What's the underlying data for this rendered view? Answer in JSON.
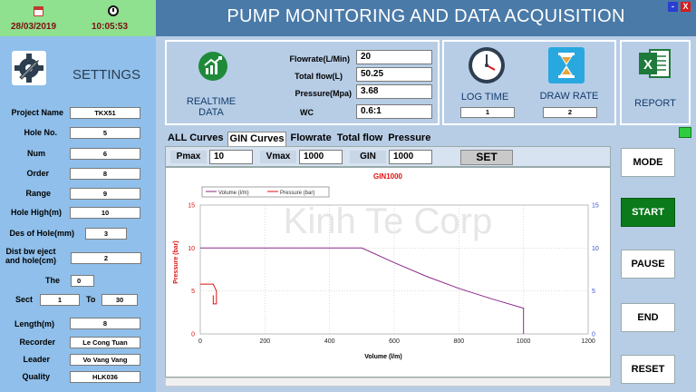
{
  "header": {
    "date": "28/03/2019",
    "time": "10:05:53",
    "title": "PUMP MONITORING AND DATA ACQUISITION",
    "min_label": "-",
    "close_label": "X"
  },
  "settings": {
    "title": "SETTINGS",
    "project_name": {
      "label": "Project Name",
      "value": "TKX51"
    },
    "hole_no": {
      "label": "Hole No.",
      "value": "5"
    },
    "num": {
      "label": "Num",
      "value": "6"
    },
    "order": {
      "label": "Order",
      "value": "8"
    },
    "range": {
      "label": "Range",
      "value": "9"
    },
    "hole_high": {
      "label": "Hole High(m)",
      "value": "10"
    },
    "des_of_hole": {
      "label": "Des of Hole(mm)",
      "value": "3"
    },
    "dist_eject_line1": "Dist bw eject",
    "dist_eject_line2": "and hole(cm)",
    "dist_eject_value": "2",
    "the": {
      "label": "The",
      "value": "0"
    },
    "sect": {
      "label": "Sect",
      "from": "1",
      "to_label": "To",
      "to": "30"
    },
    "length": {
      "label": "Length(m)",
      "value": "8"
    },
    "recorder": {
      "label": "Recorder",
      "value": "Le Cong Tuan"
    },
    "leader": {
      "label": "Leader",
      "value": "Vo Vang Vang"
    },
    "quality": {
      "label": "Quality",
      "value": "HLK036"
    }
  },
  "realtime": {
    "label_line1": "REALTIME",
    "label_line2": "DATA",
    "flowrate": {
      "label": "Flowrate(L/Min)",
      "value": "20"
    },
    "total_flow": {
      "label": "Total flow(L)",
      "value": "50.25"
    },
    "pressure": {
      "label": "Pressure(Mpa)",
      "value": "3.68"
    },
    "wc": {
      "label": "WC",
      "value": "0.6:1"
    }
  },
  "log_time": {
    "label": "LOG TIME",
    "value": "1"
  },
  "draw_rate": {
    "label": "DRAW RATE",
    "value": "2"
  },
  "report": {
    "label": "REPORT"
  },
  "tabs": [
    "ALL Curves",
    "GIN Curves",
    "Flowrate",
    "Total flow",
    "Pressure"
  ],
  "controls": {
    "pmax_label": "Pmax",
    "pmax_value": "10",
    "vmax_label": "Vmax",
    "vmax_value": "1000",
    "gin_label": "GIN",
    "gin_value": "1000",
    "set_label": "SET"
  },
  "buttons": {
    "mode": "MODE",
    "start": "START",
    "pause": "PAUSE",
    "end": "END",
    "reset": "RESET"
  },
  "colors": {
    "start_green": "#0a7a1a",
    "accent_blue": "#4a7aa8",
    "pressure_red": "#e01010",
    "volume_purple": "#8a2a8a"
  },
  "watermark": "Kinh Te Corp",
  "chart_data": {
    "type": "line",
    "title": "GIN1000",
    "xlabel": "Volume (l/m)",
    "ylabel": "Pressure (bar)",
    "xlim": [
      0,
      1200
    ],
    "ylim": [
      0,
      15
    ],
    "x_ticks": [
      "0",
      "200",
      "400",
      "600",
      "800",
      "1000",
      "1200"
    ],
    "y_ticks_left": [
      "0",
      "5",
      "10",
      "15"
    ],
    "y_ticks_right": [
      "0",
      "5",
      "10",
      "15"
    ],
    "legend": [
      "Volume (l/m)",
      "Pressure (bar)"
    ],
    "grid": true,
    "series": [
      {
        "name": "Volume (l/m)",
        "color": "#8a2a8a",
        "x": [
          0,
          500,
          600,
          700,
          800,
          900,
          1000,
          1000
        ],
        "y": [
          10,
          10,
          8.3,
          6.7,
          5.3,
          4.1,
          3.0,
          0
        ]
      },
      {
        "name": "Pressure (bar)",
        "color": "#e01010",
        "x": [
          0,
          40,
          50,
          50,
          40,
          40
        ],
        "y": [
          5.8,
          5.8,
          5.0,
          3.5,
          3.5,
          4.5
        ]
      }
    ]
  }
}
